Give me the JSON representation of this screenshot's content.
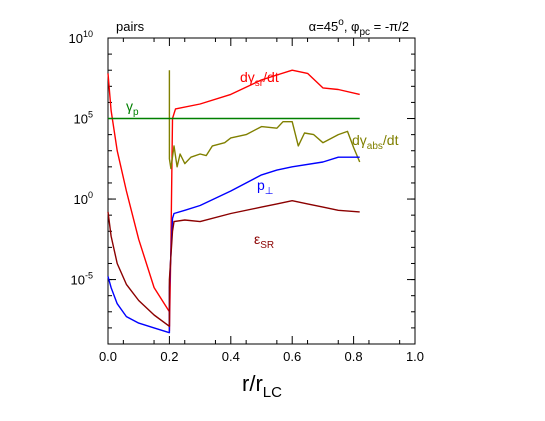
{
  "chart_data": {
    "type": "line",
    "title": "α=45°, φpc = -π/2",
    "title_parts": {
      "a": "α=45",
      "deg": "o",
      "b": ", φ",
      "sub": "pc",
      "c": " = -π/2"
    },
    "corner_label": "pairs",
    "xlabel": "r/r",
    "xlabel_sub": "LC",
    "ylabel": "",
    "xlim": [
      0,
      1.0
    ],
    "ylim": [
      -9,
      10
    ],
    "yscale": "log",
    "grid": false,
    "x_ticks": [
      "0.0",
      "0.2",
      "0.4",
      "0.6",
      "0.8",
      "1.0"
    ],
    "y_ticks": [
      {
        "base": "10",
        "exp": "10"
      },
      {
        "base": "10",
        "exp": "5"
      },
      {
        "base": "10",
        "exp": "0"
      },
      {
        "base": "10",
        "exp": "-5"
      }
    ],
    "y_tick_values": [
      10,
      5,
      0,
      -5
    ],
    "series": [
      {
        "name": "dγsr/dt",
        "label_parts": {
          "main": "dγ",
          "sub": "sr",
          "tail": "/dt"
        },
        "color": "#ff0000",
        "log10_points": [
          [
            0.0,
            7.8
          ],
          [
            0.01,
            5.5
          ],
          [
            0.03,
            3.0
          ],
          [
            0.06,
            0.5
          ],
          [
            0.1,
            -2.5
          ],
          [
            0.15,
            -5.5
          ],
          [
            0.2,
            -7.0
          ],
          [
            0.2,
            -8.2
          ],
          [
            0.205,
            -3.0
          ],
          [
            0.21,
            5.0
          ],
          [
            0.215,
            5.3
          ],
          [
            0.22,
            5.6
          ],
          [
            0.3,
            5.9
          ],
          [
            0.4,
            6.5
          ],
          [
            0.5,
            7.4
          ],
          [
            0.55,
            7.7
          ],
          [
            0.6,
            8.0
          ],
          [
            0.65,
            7.8
          ],
          [
            0.7,
            6.9
          ],
          [
            0.75,
            6.8
          ],
          [
            0.82,
            6.5
          ]
        ]
      },
      {
        "name": "dγabs/dt",
        "label_parts": {
          "main": "dγ",
          "sub": "abs",
          "tail": "/dt"
        },
        "color": "#808000",
        "log10_points": [
          [
            0.2,
            8.0
          ],
          [
            0.2,
            2.5
          ],
          [
            0.205,
            1.9
          ],
          [
            0.215,
            3.3
          ],
          [
            0.225,
            2.0
          ],
          [
            0.235,
            2.8
          ],
          [
            0.25,
            2.2
          ],
          [
            0.27,
            2.6
          ],
          [
            0.3,
            2.8
          ],
          [
            0.32,
            2.7
          ],
          [
            0.34,
            3.3
          ],
          [
            0.38,
            3.5
          ],
          [
            0.4,
            3.8
          ],
          [
            0.45,
            4.0
          ],
          [
            0.5,
            4.5
          ],
          [
            0.55,
            4.4
          ],
          [
            0.57,
            4.8
          ],
          [
            0.6,
            4.8
          ],
          [
            0.62,
            3.3
          ],
          [
            0.64,
            4.1
          ],
          [
            0.67,
            4.0
          ],
          [
            0.7,
            3.5
          ],
          [
            0.75,
            4.0
          ],
          [
            0.78,
            4.2
          ],
          [
            0.8,
            3.2
          ],
          [
            0.82,
            2.3
          ]
        ]
      },
      {
        "name": "γp",
        "label_parts": {
          "main": "γ",
          "sub": "p",
          "tail": ""
        },
        "color": "#008000",
        "log10_points": [
          [
            0.0,
            5.0
          ],
          [
            0.82,
            5.0
          ]
        ]
      },
      {
        "name": "p⊥",
        "label_parts": {
          "main": "p",
          "sub": "⊥",
          "tail": ""
        },
        "color": "#0000ff",
        "log10_points": [
          [
            0.0,
            -4.8
          ],
          [
            0.01,
            -5.5
          ],
          [
            0.03,
            -6.5
          ],
          [
            0.06,
            -7.3
          ],
          [
            0.1,
            -7.7
          ],
          [
            0.15,
            -8.0
          ],
          [
            0.2,
            -8.3
          ],
          [
            0.2,
            -5.5
          ],
          [
            0.21,
            -1.2
          ],
          [
            0.215,
            -0.9
          ],
          [
            0.25,
            -0.7
          ],
          [
            0.3,
            -0.4
          ],
          [
            0.4,
            0.5
          ],
          [
            0.5,
            1.5
          ],
          [
            0.55,
            1.8
          ],
          [
            0.6,
            2.0
          ],
          [
            0.7,
            2.3
          ],
          [
            0.75,
            2.6
          ],
          [
            0.82,
            2.6
          ]
        ]
      },
      {
        "name": "εSR",
        "label_parts": {
          "main": "ε",
          "sub": "SR",
          "tail": ""
        },
        "color": "#8b0000",
        "log10_points": [
          [
            0.0,
            -0.8
          ],
          [
            0.01,
            -2.3
          ],
          [
            0.03,
            -4.0
          ],
          [
            0.06,
            -5.3
          ],
          [
            0.1,
            -6.3
          ],
          [
            0.15,
            -7.2
          ],
          [
            0.2,
            -7.9
          ],
          [
            0.2,
            -5.0
          ],
          [
            0.21,
            -2.0
          ],
          [
            0.215,
            -1.4
          ],
          [
            0.25,
            -1.3
          ],
          [
            0.3,
            -1.4
          ],
          [
            0.4,
            -0.9
          ],
          [
            0.5,
            -0.5
          ],
          [
            0.55,
            -0.3
          ],
          [
            0.6,
            -0.1
          ],
          [
            0.65,
            -0.3
          ],
          [
            0.7,
            -0.5
          ],
          [
            0.75,
            -0.7
          ],
          [
            0.82,
            -0.8
          ]
        ]
      }
    ]
  }
}
